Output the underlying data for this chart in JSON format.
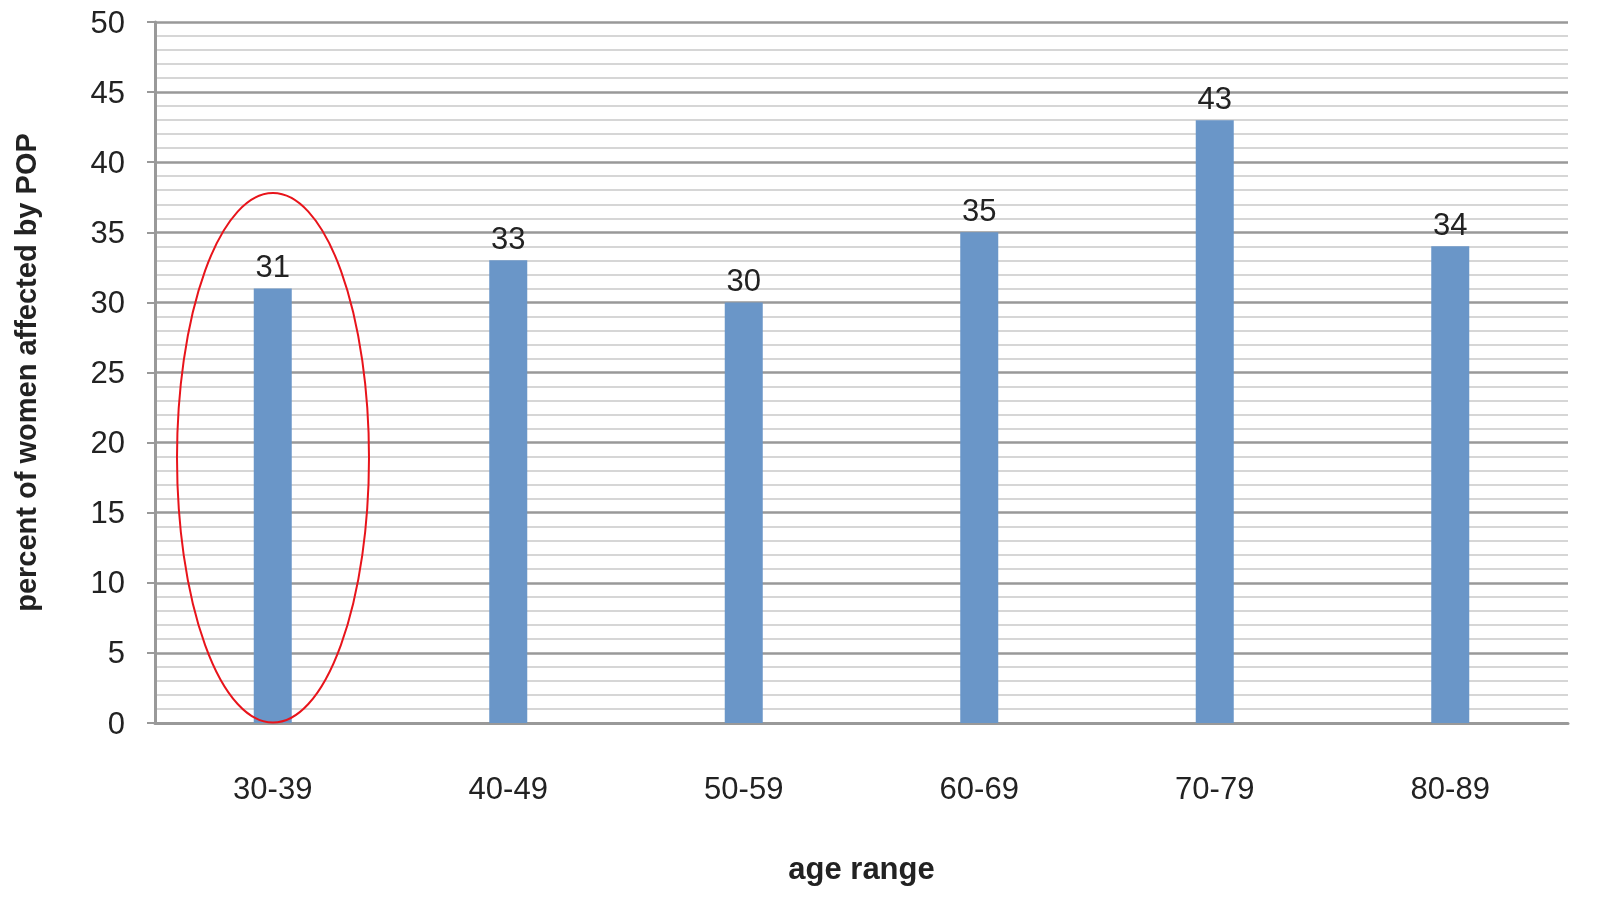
{
  "chart_data": {
    "type": "bar",
    "xlabel": "age range",
    "ylabel": "percent of women affected by POP",
    "categories": [
      "30-39",
      "40-49",
      "50-59",
      "60-69",
      "70-79",
      "80-89"
    ],
    "values": [
      31,
      33,
      30,
      35,
      43,
      34
    ],
    "color": "#6a96c8",
    "ylim": [
      0,
      50
    ],
    "yticks": [
      0,
      5,
      10,
      15,
      20,
      25,
      30,
      35,
      40,
      45,
      50
    ],
    "grid": "y",
    "data_labels": true
  }
}
